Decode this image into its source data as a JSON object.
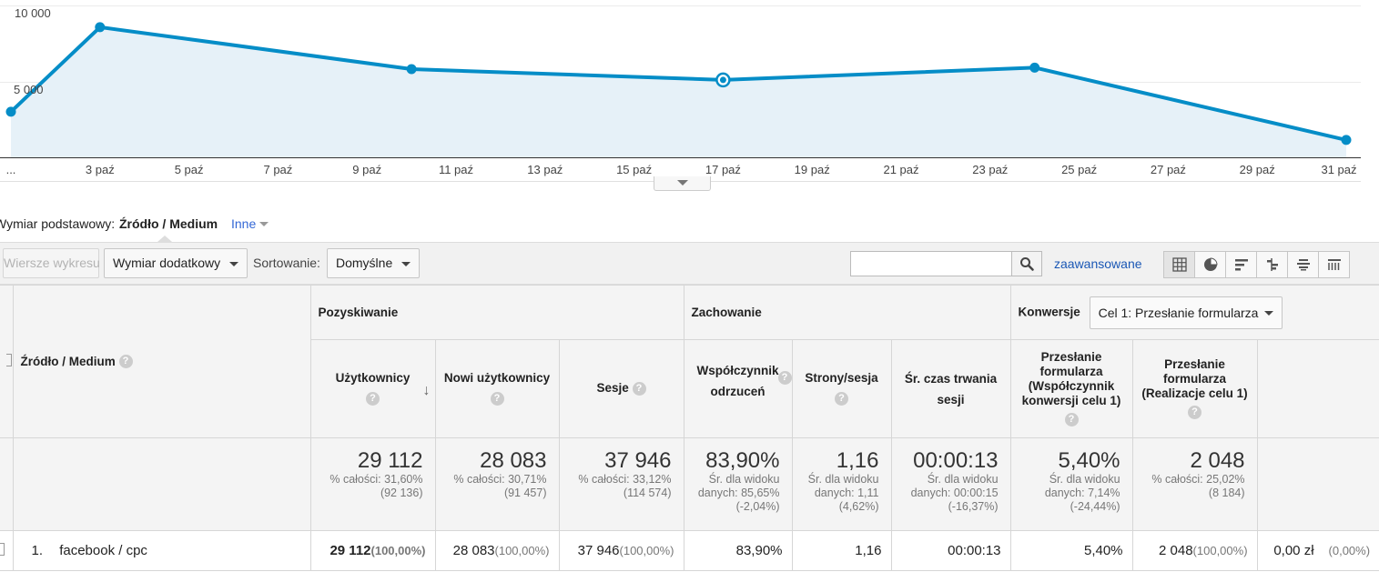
{
  "chart_data": {
    "type": "area",
    "x_ticks": [
      "...",
      "3 paź",
      "5 paź",
      "7 paź",
      "9 paź",
      "11 paź",
      "13 paź",
      "15 paź",
      "17 paź",
      "19 paź",
      "21 paź",
      "23 paź",
      "25 paź",
      "27 paź",
      "29 paź",
      "31 paź"
    ],
    "y_ticks": [
      "10 000",
      "5 000"
    ],
    "ylim": [
      0,
      10000
    ],
    "points": [
      {
        "x": "1 paź",
        "y": 3150
      },
      {
        "x": "3 paź",
        "y": 9000
      },
      {
        "x": "10 paź",
        "y": 6100
      },
      {
        "x": "17 paź",
        "y": 5350
      },
      {
        "x": "24 paź",
        "y": 6200
      },
      {
        "x": "31 paź",
        "y": 1200
      }
    ],
    "highlighted_point": "17 paź",
    "grid": true,
    "line_color": "#058dc7",
    "fill_color": "#e6f1f8"
  },
  "dimension_bar": {
    "label": "Wymiar podstawowy:",
    "selected": "Źródło / Medium",
    "other": "Inne"
  },
  "toolbar": {
    "plot_rows": "Wiersze wykresu",
    "secondary_dimension": "Wymiar dodatkowy",
    "sort_label": "Sortowanie:",
    "sort_value": "Domyślne",
    "search_value": "",
    "advanced": "zaawansowane",
    "views": [
      "grid-icon",
      "pie-icon",
      "bars-icon",
      "comparison-icon",
      "pivot-icon",
      "table-icon"
    ]
  },
  "table": {
    "dimension_header": "Źródło / Medium",
    "groups": {
      "acquisition": "Pozyskiwanie",
      "behavior": "Zachowanie",
      "conversions": "Konwersje",
      "goal_select": "Cel 1: Przesłanie formularza"
    },
    "columns": [
      "Użytkownicy",
      "Nowi użytkownicy",
      "Sesje",
      "Współczynnik odrzuceń",
      "Strony/sesja",
      "Śr. czas trwania sesji",
      "Przesłanie formularza (Współczynnik konwersji celu 1)",
      "Przesłanie formularza (Realizacje celu 1)"
    ],
    "totals": [
      {
        "value": "29 112",
        "line1": "% całości: 31,60%",
        "line2": "(92 136)"
      },
      {
        "value": "28 083",
        "line1": "% całości: 30,71%",
        "line2": "(91 457)"
      },
      {
        "value": "37 946",
        "line1": "% całości: 33,12%",
        "line2": "(114 574)"
      },
      {
        "value": "83,90%",
        "line1": "Śr. dla widoku",
        "line2": "danych: 85,65%",
        "line3": "(-2,04%)"
      },
      {
        "value": "1,16",
        "line1": "Śr. dla widoku",
        "line2": "danych: 1,11",
        "line3": "(4,62%)"
      },
      {
        "value": "00:00:13",
        "line1": "Śr. dla widoku",
        "line2": "danych: 00:00:15",
        "line3": "(-16,37%)"
      },
      {
        "value": "5,40%",
        "line1": "Śr. dla widoku",
        "line2": "danych: 7,14%",
        "line3": "(-24,44%)"
      },
      {
        "value": "2 048",
        "line1": "% całości: 25,02%",
        "line2": "(8 184)"
      }
    ],
    "rows": [
      {
        "index": "1.",
        "dimension": "facebook / cpc",
        "users": "29 112",
        "users_pct": "(100,00%)",
        "new_users": "28 083",
        "new_users_pct": "(100,00%)",
        "sessions": "37 946",
        "sessions_pct": "(100,00%)",
        "bounce": "83,90%",
        "pages": "1,16",
        "duration": "00:00:13",
        "conv_rate": "5,40%",
        "completions": "2 048",
        "completions_pct": "(100,00%)",
        "value": "0,00 zł",
        "value_pct": "(0,00%)"
      }
    ]
  }
}
